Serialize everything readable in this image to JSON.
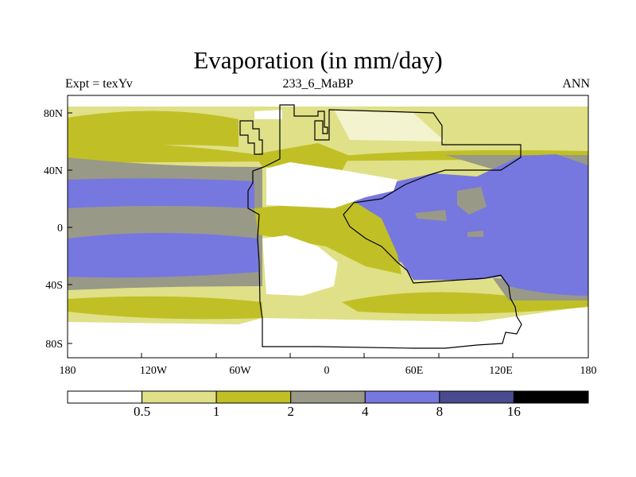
{
  "title": "Evaporation (in mm/day)",
  "left_string": "Expt = texYv",
  "center_string": "233_6_MaBP",
  "right_string": "ANN",
  "map": {
    "projection": "cylindrical-equidistant",
    "lon_range": [
      -180,
      180
    ],
    "lat_range": [
      -90,
      90
    ],
    "x_ticks": [
      "180",
      "120W",
      "60W",
      "0",
      "60E",
      "120E",
      "180"
    ],
    "y_ticks": [
      "80N",
      "40N",
      "0",
      "40S",
      "80S"
    ],
    "variable": "Evaporation",
    "units": "mm/day"
  },
  "colorbar": {
    "levels": [
      "0.5",
      "1",
      "2",
      "4",
      "8",
      "16"
    ],
    "colors": [
      "#ffffff",
      "#e0e088",
      "#c0c026",
      "#999988",
      "#7777e0",
      "#4a4a8e",
      "#000000"
    ]
  }
}
